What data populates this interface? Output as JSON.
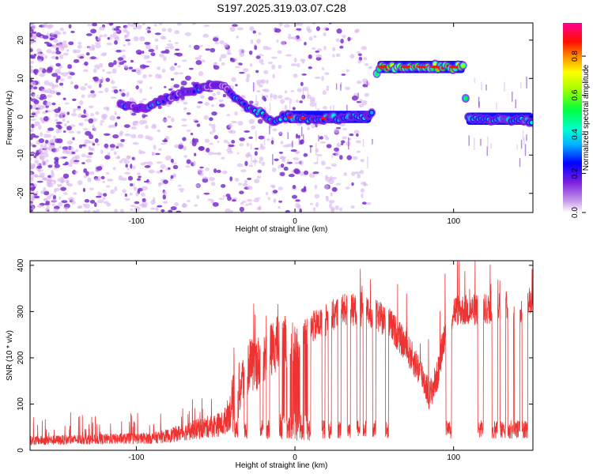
{
  "title": "S197.2025.319.03.07.C28",
  "chart_data": [
    {
      "type": "heatmap",
      "name": "spectrogram",
      "xlabel": "Height of straight line (km)",
      "ylabel": "Frequency (Hz)",
      "xlim": [
        -167,
        150
      ],
      "ylim": [
        -25,
        24.5
      ],
      "xticks": [
        -100,
        0,
        100
      ],
      "xtick_labels": [
        "-100",
        "0",
        "100"
      ],
      "yticks": [
        -20,
        -10,
        0,
        10,
        20
      ],
      "ytick_labels": [
        "-20",
        "-10",
        "0",
        "10",
        "20"
      ],
      "ridge": [
        {
          "x": -110,
          "y": 3
        },
        {
          "x": -95,
          "y": 2
        },
        {
          "x": -80,
          "y": 5
        },
        {
          "x": -65,
          "y": 7
        },
        {
          "x": -55,
          "y": 8
        },
        {
          "x": -45,
          "y": 8
        },
        {
          "x": -35,
          "y": 4
        },
        {
          "x": -28,
          "y": 2
        },
        {
          "x": -20,
          "y": 0.5
        },
        {
          "x": -15,
          "y": -1
        },
        {
          "x": -5,
          "y": 0
        },
        {
          "x": 10,
          "y": -0.5
        },
        {
          "x": 48,
          "y": 0
        },
        {
          "x": 52,
          "y": 13
        },
        {
          "x": 107,
          "y": 13
        },
        {
          "x": 108,
          "y": -0.5
        },
        {
          "x": 150,
          "y": -1
        }
      ],
      "colorbar": {
        "label": "Normalized spectral amplitude",
        "range": [
          0,
          0.97
        ],
        "ticks": [
          0.0,
          0.2,
          0.4,
          0.6,
          0.8
        ],
        "tick_labels": [
          "0.0",
          "0.2",
          "0.4",
          "0.6",
          "0.8"
        ]
      }
    },
    {
      "type": "line",
      "name": "snr",
      "xlabel": "Height of straight line (km)",
      "ylabel": "SNR (10 * v/v)",
      "xlim": [
        -167,
        150
      ],
      "ylim": [
        0,
        410
      ],
      "xticks": [
        -100,
        0,
        100
      ],
      "xtick_labels": [
        "-100",
        "0",
        "100"
      ],
      "yticks": [
        0,
        100,
        200,
        300,
        400
      ],
      "ytick_labels": [
        "0",
        "100",
        "200",
        "300",
        "400"
      ],
      "series": [
        {
          "name": "SNR",
          "color": "#ee3333",
          "envelope": {
            "x": [
              -167,
              -90,
              -80,
              -60,
              -45,
              -38,
              -30,
              -20,
              -10,
              0,
              10,
              20,
              30,
              40,
              50,
              60,
              70,
              80,
              85,
              90,
              95,
              100,
              110,
              120,
              130,
              140,
              150
            ],
            "y": [
              20,
              25,
              30,
              45,
              55,
              100,
              170,
              190,
              230,
              220,
              260,
              280,
              300,
              300,
              290,
              270,
              220,
              160,
              115,
              160,
              260,
              300,
              300,
              300,
              310,
              300,
              320
            ]
          },
          "dips": [
            -37,
            -31,
            -21,
            -17,
            -9,
            -4,
            4,
            9,
            18,
            22,
            28,
            34,
            40,
            44,
            50,
            58,
            97,
            117,
            126,
            131,
            136,
            140,
            145
          ]
        }
      ]
    }
  ],
  "colors": {
    "line": "#ee3333",
    "dot_light": "#d9b3f0",
    "dot_dark": "#7a2fd0"
  }
}
